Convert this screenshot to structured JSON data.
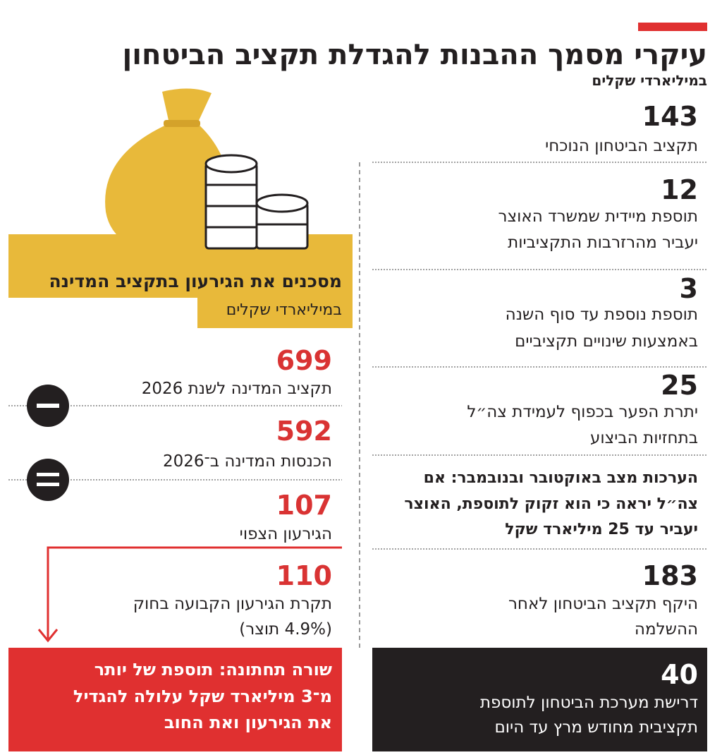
{
  "header": {
    "title": "עיקרי מסמך ההבנות להגדלת תקציב הביטחון",
    "subtitle": "במיליארדי שקלים"
  },
  "right_items": [
    {
      "value": 143,
      "lines": [
        "תקציב הביטחון הנוכחי"
      ]
    },
    {
      "value": 12,
      "lines": [
        "תוספת מיידית שמשרד האוצר",
        "יעביר מהרזרבות התקציביות"
      ]
    },
    {
      "value": 3,
      "lines": [
        "תוספת נוספת עד סוף השנה",
        "באמצעות שינויים תקציביים"
      ]
    },
    {
      "value": 25,
      "lines": [
        "יתרת הפער בכפוף לעמידת צה״ל",
        "בתחזיות הביצוע"
      ]
    }
  ],
  "note": {
    "lines": [
      "הערכות מצב באוקטובר ובנובמבר: אם",
      "צה״ל יראה כי הוא זקוק לתוספת, האוצר",
      "יעביר עד 25 מיליארד שקל"
    ]
  },
  "total": {
    "value": 183,
    "lines": [
      "היקף תקציב הביטחון לאחר",
      "ההשלמה"
    ]
  },
  "demand": {
    "value": 40,
    "lines": [
      "דרישת מערכת הביטחון לתוספת",
      "תקציבית מחודש מרץ עד היום"
    ]
  },
  "left_box": {
    "title": "מסכנים את הגירעון בתקציב המדינה",
    "subtitle": "במיליארדי שקלים"
  },
  "left_items": [
    {
      "value": 699,
      "lines": [
        "תקציב המדינה לשנת 2026"
      ]
    },
    {
      "value": 592,
      "lines": [
        "הכנסות המדינה ב־2026"
      ]
    },
    {
      "value": 107,
      "lines": [
        "הגירעון הצפוי"
      ]
    },
    {
      "value": 110,
      "lines": [
        "תקרת הגירעון הקבועה בחוק",
        "(4.9% תוצר)"
      ]
    }
  ],
  "bottom_line": {
    "lines": [
      "שורה תחתונה: תוספת של יותר",
      "מ־3 מיליארד שקל עלולה להגדיל",
      "את הגירעון ואת החוב"
    ]
  }
}
